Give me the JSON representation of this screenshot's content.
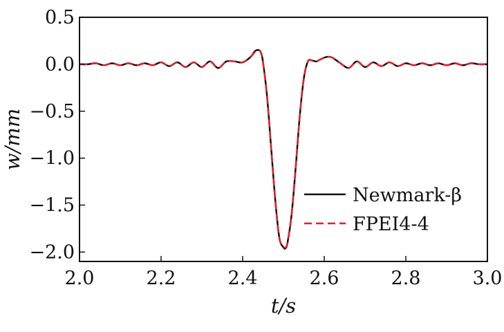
{
  "chart_data": {
    "type": "line",
    "title": "",
    "xlabel": "t/s",
    "ylabel": "w/mm",
    "xlim": [
      2.0,
      3.0
    ],
    "ylim": [
      -2.1,
      0.5
    ],
    "x_ticks": [
      2.0,
      2.2,
      2.4,
      2.6,
      2.8,
      3.0
    ],
    "x_tick_labels": [
      "2.0",
      "2.2",
      "2.4",
      "2.6",
      "2.8",
      "3.0"
    ],
    "y_ticks": [
      0.5,
      0.0,
      -0.5,
      -1.0,
      -1.5,
      -2.0
    ],
    "y_tick_labels": [
      "0.5",
      "0.0",
      "−0.5",
      "−1.0",
      "−1.5",
      "−2.0"
    ],
    "grid": false,
    "legend_position": "lower-right",
    "series": [
      {
        "name": "Newmark-β",
        "color": "#111111",
        "style": "solid",
        "x": [
          2.0,
          2.02,
          2.04,
          2.06,
          2.08,
          2.1,
          2.12,
          2.14,
          2.16,
          2.18,
          2.2,
          2.22,
          2.24,
          2.26,
          2.28,
          2.3,
          2.32,
          2.34,
          2.36,
          2.38,
          2.4,
          2.42,
          2.43,
          2.44,
          2.445,
          2.45,
          2.46,
          2.47,
          2.48,
          2.49,
          2.5,
          2.505,
          2.51,
          2.52,
          2.53,
          2.54,
          2.55,
          2.56,
          2.57,
          2.58,
          2.59,
          2.6,
          2.61,
          2.62,
          2.63,
          2.64,
          2.66,
          2.68,
          2.7,
          2.72,
          2.74,
          2.76,
          2.78,
          2.8,
          2.82,
          2.84,
          2.86,
          2.88,
          2.9,
          2.92,
          2.94,
          2.96,
          2.98,
          3.0
        ],
        "y": [
          0.0,
          0.0,
          0.01,
          -0.01,
          0.01,
          -0.01,
          0.01,
          -0.01,
          0.01,
          -0.01,
          0.02,
          -0.02,
          0.02,
          -0.03,
          0.02,
          -0.03,
          0.03,
          -0.04,
          0.03,
          0.03,
          0.02,
          0.08,
          0.14,
          0.15,
          0.12,
          0.02,
          -0.35,
          -0.9,
          -1.45,
          -1.85,
          -1.95,
          -1.96,
          -1.9,
          -1.6,
          -1.1,
          -0.55,
          -0.15,
          0.03,
          0.04,
          0.03,
          0.05,
          0.07,
          0.08,
          0.07,
          0.04,
          0.01,
          -0.04,
          0.03,
          -0.03,
          0.02,
          -0.02,
          0.02,
          -0.02,
          0.01,
          -0.01,
          0.01,
          -0.01,
          0.01,
          -0.01,
          0.01,
          -0.01,
          0.01,
          0.0,
          0.0
        ]
      },
      {
        "name": "FPEI4-4",
        "color": "#e0202a",
        "style": "dashed",
        "x": [
          2.0,
          2.02,
          2.04,
          2.06,
          2.08,
          2.1,
          2.12,
          2.14,
          2.16,
          2.18,
          2.2,
          2.22,
          2.24,
          2.26,
          2.28,
          2.3,
          2.32,
          2.34,
          2.36,
          2.38,
          2.4,
          2.42,
          2.43,
          2.44,
          2.445,
          2.45,
          2.46,
          2.47,
          2.48,
          2.49,
          2.5,
          2.505,
          2.51,
          2.52,
          2.53,
          2.54,
          2.55,
          2.56,
          2.57,
          2.58,
          2.59,
          2.6,
          2.61,
          2.62,
          2.63,
          2.64,
          2.66,
          2.68,
          2.7,
          2.72,
          2.74,
          2.76,
          2.78,
          2.8,
          2.82,
          2.84,
          2.86,
          2.88,
          2.9,
          2.92,
          2.94,
          2.96,
          2.98,
          3.0
        ],
        "y": [
          0.0,
          0.0,
          0.01,
          -0.01,
          0.01,
          -0.01,
          0.01,
          -0.01,
          0.01,
          -0.01,
          0.02,
          -0.02,
          0.02,
          -0.03,
          0.02,
          -0.03,
          0.03,
          -0.04,
          0.03,
          0.03,
          0.02,
          0.08,
          0.13,
          0.15,
          0.12,
          0.02,
          -0.35,
          -0.9,
          -1.45,
          -1.85,
          -1.94,
          -1.95,
          -1.9,
          -1.6,
          -1.1,
          -0.55,
          -0.15,
          0.03,
          0.04,
          0.03,
          0.05,
          0.07,
          0.08,
          0.07,
          0.04,
          0.01,
          -0.04,
          0.03,
          -0.03,
          0.02,
          -0.02,
          0.02,
          -0.02,
          0.01,
          -0.01,
          0.01,
          -0.01,
          0.01,
          -0.01,
          0.01,
          -0.01,
          0.01,
          0.0,
          0.0
        ]
      }
    ]
  }
}
